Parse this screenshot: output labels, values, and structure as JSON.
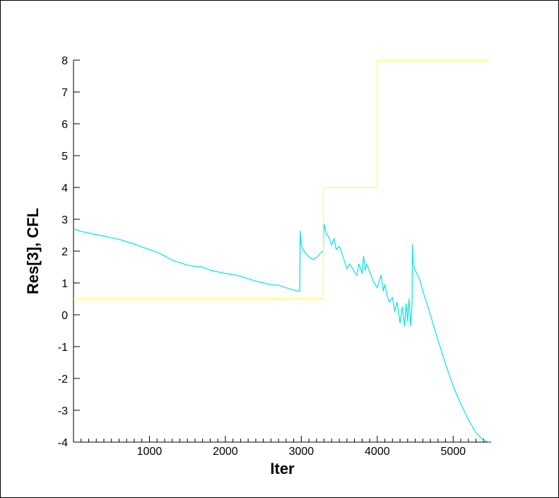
{
  "chart_data": {
    "type": "line",
    "xlabel": "Iter",
    "ylabel": "Res[3], CFL",
    "xlim": [
      0,
      5500
    ],
    "ylim": [
      -4,
      8
    ],
    "x_ticks": [
      1000,
      2000,
      3000,
      4000,
      5000
    ],
    "x_minor_step": 100,
    "y_ticks": [
      -4,
      -3,
      -2,
      -1,
      0,
      1,
      2,
      3,
      4,
      5,
      6,
      7,
      8
    ],
    "grid": false,
    "legend": "none",
    "series": [
      {
        "color": "#00e5e5",
        "x": [
          0,
          100,
          200,
          300,
          400,
          500,
          600,
          700,
          800,
          900,
          1000,
          1100,
          1200,
          1300,
          1400,
          1500,
          1600,
          1700,
          1800,
          1900,
          2000,
          2100,
          2200,
          2300,
          2400,
          2500,
          2600,
          2700,
          2800,
          2900,
          2980,
          2985,
          3000,
          3050,
          3100,
          3150,
          3200,
          3250,
          3290,
          3300,
          3330,
          3360,
          3400,
          3430,
          3460,
          3500,
          3560,
          3600,
          3640,
          3700,
          3730,
          3760,
          3800,
          3820,
          3840,
          3860,
          3900,
          3950,
          4000,
          4050,
          4080,
          4100,
          4130,
          4160,
          4200,
          4230,
          4260,
          4300,
          4330,
          4360,
          4380,
          4400,
          4420,
          4440,
          4460,
          4462,
          4470,
          4490,
          4510,
          4560,
          4600,
          4700,
          4800,
          4900,
          5000,
          5100,
          5200,
          5300,
          5400,
          5480
        ],
        "values": [
          2.7,
          2.62,
          2.57,
          2.52,
          2.47,
          2.42,
          2.37,
          2.3,
          2.22,
          2.13,
          2.05,
          1.97,
          1.85,
          1.72,
          1.64,
          1.56,
          1.52,
          1.5,
          1.4,
          1.35,
          1.3,
          1.27,
          1.21,
          1.13,
          1.06,
          1.0,
          0.94,
          0.93,
          0.85,
          0.78,
          0.74,
          2.63,
          2.15,
          1.95,
          1.82,
          1.74,
          1.8,
          1.93,
          2.0,
          2.85,
          2.55,
          2.45,
          2.2,
          2.4,
          2.05,
          2.15,
          1.75,
          1.45,
          1.6,
          1.35,
          1.25,
          1.6,
          1.3,
          1.85,
          1.4,
          1.6,
          1.35,
          1.05,
          0.85,
          1.25,
          0.75,
          0.95,
          0.6,
          0.4,
          0.55,
          0.1,
          0.4,
          -0.25,
          0.25,
          -0.35,
          0.35,
          -0.2,
          0.5,
          -0.35,
          0.4,
          2.2,
          1.7,
          1.45,
          1.35,
          1.1,
          0.75,
          0.0,
          -0.8,
          -1.55,
          -2.25,
          -2.8,
          -3.3,
          -3.7,
          -3.95,
          -4.0
        ]
      },
      {
        "color": "#ffff40",
        "x": [
          0,
          3290,
          3290,
          4000,
          4000,
          5480
        ],
        "values": [
          0.5,
          0.5,
          4,
          4,
          8,
          8
        ]
      }
    ]
  }
}
